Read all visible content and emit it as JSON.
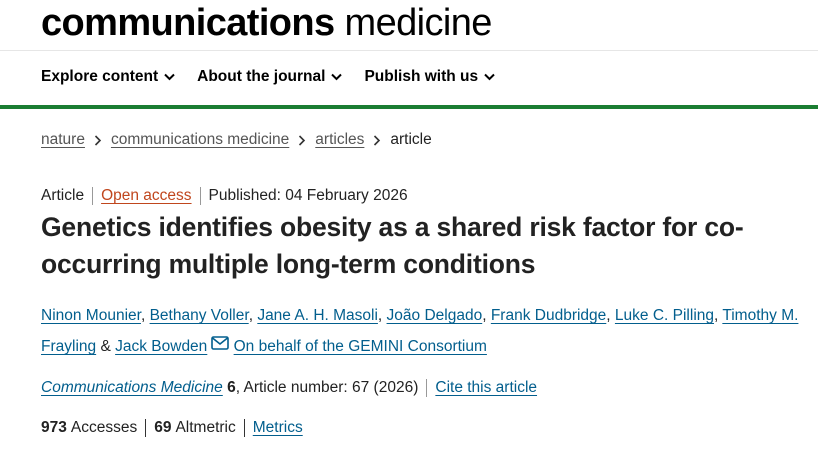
{
  "header": {
    "logo_bold": "communications",
    "logo_regular": "medicine"
  },
  "nav": [
    "Explore content",
    "About the journal",
    "Publish with us"
  ],
  "breadcrumbs": [
    "nature",
    "communications medicine",
    "articles",
    "article"
  ],
  "article": {
    "type": "Article",
    "access": "Open access",
    "published": "Published: 04 February 2026",
    "title": "Genetics identifies obesity as a shared risk factor for co-occurring multiple long-term conditions",
    "authors": [
      "Ninon Mounier",
      "Bethany Voller",
      "Jane A. H. Masoli",
      "João Delgado",
      "Frank Dudbridge",
      "Luke C. Pilling",
      "Timothy M. Frayling",
      "Jack Bowden"
    ],
    "author_separator": ",",
    "last_author_joiner": "&",
    "consortium": "On behalf of the GEMINI Consortium",
    "journal": "Communications Medicine",
    "volume": "6",
    "article_number": ", Article number: 67 (2026)",
    "cite": "Cite this article",
    "metrics": {
      "accesses": 973,
      "accesses_label": "Accesses",
      "altmetric": 69,
      "altmetric_label": "Altmetric",
      "link": "Metrics"
    }
  }
}
